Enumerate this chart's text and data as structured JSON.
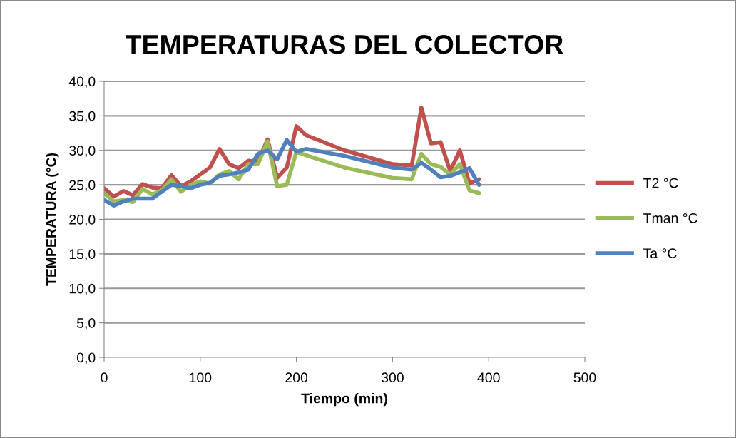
{
  "chart_data": {
    "type": "line",
    "title": "TEMPERATURAS DEL COLECTOR",
    "xlabel": "Tiempo (min)",
    "ylabel": "TEMPERATURA (°C)",
    "x": [
      0,
      10,
      20,
      30,
      40,
      50,
      60,
      70,
      80,
      90,
      100,
      110,
      120,
      130,
      140,
      150,
      160,
      170,
      180,
      190,
      200,
      210,
      250,
      300,
      320,
      330,
      340,
      350,
      360,
      370,
      380,
      390
    ],
    "series": [
      {
        "name": "T2 °C",
        "color": "#c0504d",
        "values": [
          24.5,
          23.3,
          24.1,
          23.5,
          25.1,
          24.6,
          24.5,
          26.4,
          24.8,
          25.5,
          26.5,
          27.5,
          30.2,
          28.0,
          27.4,
          28.5,
          28.3,
          31.6,
          26.0,
          27.5,
          33.5,
          32.2,
          30.0,
          28.0,
          27.8,
          36.2,
          31.0,
          31.2,
          27.0,
          30.0,
          25.2,
          25.8
        ]
      },
      {
        "name": "Tman °C",
        "color": "#9bbb59",
        "values": [
          23.8,
          22.6,
          22.8,
          22.5,
          24.4,
          23.6,
          24.2,
          25.8,
          24.0,
          25.0,
          25.5,
          25.2,
          26.5,
          27.0,
          25.8,
          28.0,
          28.0,
          31.3,
          24.8,
          25.0,
          29.8,
          29.3,
          27.5,
          26.0,
          25.8,
          29.5,
          28.0,
          27.6,
          26.5,
          28.0,
          24.2,
          23.8
        ]
      },
      {
        "name": "Ta °C",
        "color": "#4f81bd",
        "values": [
          22.8,
          22.0,
          22.6,
          23.0,
          23.0,
          23.0,
          24.0,
          25.0,
          24.8,
          24.5,
          25.0,
          25.3,
          26.3,
          26.5,
          26.8,
          27.2,
          29.5,
          30.0,
          28.7,
          31.5,
          29.8,
          30.2,
          29.2,
          27.5,
          27.2,
          28.2,
          27.2,
          26.1,
          26.3,
          26.8,
          27.4,
          25.0
        ]
      }
    ],
    "xlim": [
      0,
      500
    ],
    "xticks": [
      0,
      100,
      200,
      300,
      400,
      500
    ],
    "ylim": [
      0,
      40
    ],
    "yticks": [
      {
        "value": 0,
        "label": "0,0"
      },
      {
        "value": 5,
        "label": "5,0"
      },
      {
        "value": 10,
        "label": "10,0"
      },
      {
        "value": 15,
        "label": "15,0"
      },
      {
        "value": 20,
        "label": "20,0"
      },
      {
        "value": 25,
        "label": "25,0"
      },
      {
        "value": 30,
        "label": "30,0"
      },
      {
        "value": 35,
        "label": "35,0"
      },
      {
        "value": 40,
        "label": "40,0"
      }
    ],
    "grid": "y",
    "legend": "right",
    "marker": "none",
    "line_style": "solid"
  }
}
